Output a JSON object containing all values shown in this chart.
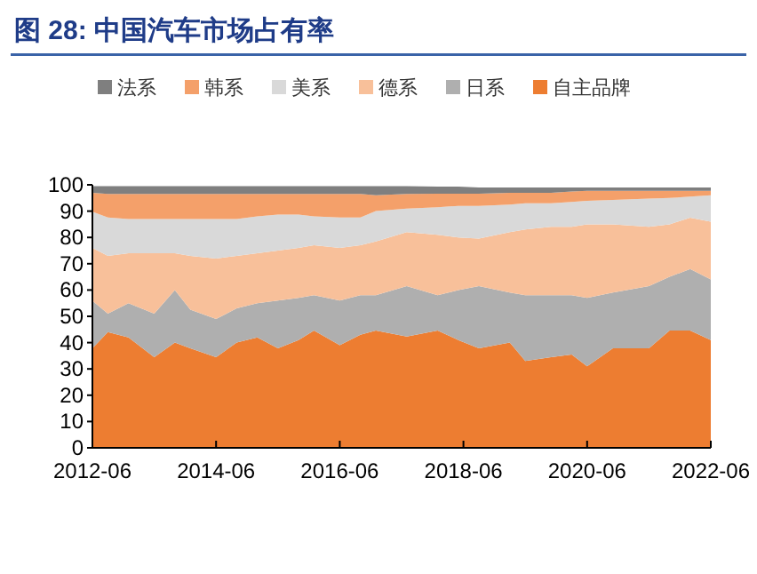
{
  "chart_data": {
    "type": "area",
    "stacked": true,
    "title": "图 28: 中国汽车市场占有率",
    "x": [
      "2012-06",
      "2012-09",
      "2013-01",
      "2013-06",
      "2013-10",
      "2014-01",
      "2014-06",
      "2014-10",
      "2015-02",
      "2015-06",
      "2015-10",
      "2016-01",
      "2016-06",
      "2016-10",
      "2017-01",
      "2017-07",
      "2018-01",
      "2018-05",
      "2018-09",
      "2019-03",
      "2019-06",
      "2019-11",
      "2020-03",
      "2020-06",
      "2020-11",
      "2021-06",
      "2021-10",
      "2022-02",
      "2022-06"
    ],
    "series": [
      {
        "name": "自主品牌",
        "color": "#ed7d31",
        "values": [
          37.8,
          44,
          42,
          34.5,
          40,
          37.8,
          34.5,
          40,
          42,
          37.8,
          41,
          44.6,
          39,
          43,
          44.6,
          42.3,
          44.6,
          41,
          37.8,
          40,
          33,
          34.5,
          35.5,
          31,
          37.8,
          37.8,
          44.6,
          44.6,
          41
        ]
      },
      {
        "name": "日系",
        "color": "#afafaf",
        "values": [
          18.1,
          7,
          13,
          16.5,
          20,
          14.7,
          14.5,
          13,
          13,
          18.2,
          16,
          13.4,
          17,
          15,
          13.4,
          19.2,
          13.4,
          19,
          23.7,
          19,
          25,
          23.5,
          22.5,
          26,
          21.2,
          23.7,
          20.4,
          23.4,
          23
        ]
      },
      {
        "name": "德系",
        "color": "#f8c09a",
        "values": [
          20.1,
          22,
          19,
          23,
          14,
          20.5,
          23,
          20,
          19,
          19,
          19,
          19,
          20,
          19,
          20.5,
          20.5,
          23,
          20,
          18.1,
          23,
          25,
          26,
          26,
          28,
          26,
          22.5,
          20,
          19.5,
          22
        ]
      },
      {
        "name": "美系",
        "color": "#d9d9d9",
        "values": [
          13.8,
          14.6,
          13,
          13,
          13,
          14,
          15,
          14,
          14,
          13.7,
          12.7,
          11,
          11.6,
          10.6,
          11.5,
          9,
          10.5,
          12,
          12.4,
          10.5,
          10,
          9,
          9.5,
          8.9,
          9.3,
          10.8,
          10,
          8,
          10
        ]
      },
      {
        "name": "韩系",
        "color": "#f4a06a",
        "values": [
          7.2,
          8.9,
          9.5,
          9.5,
          9.5,
          9.5,
          9.5,
          9.5,
          8.5,
          7.8,
          7.8,
          8.5,
          8.9,
          8.9,
          6,
          5.5,
          5.1,
          4.6,
          4.6,
          4.5,
          4,
          4,
          4,
          3.8,
          3.4,
          2.9,
          2.7,
          2.2,
          1.7
        ]
      },
      {
        "name": "法系",
        "color": "#7f7f7f",
        "values": [
          2.5,
          3,
          3,
          3,
          3,
          3,
          3,
          3,
          3,
          3,
          3,
          3,
          3,
          3,
          3.5,
          3,
          2.7,
          2.7,
          2.4,
          2,
          2,
          2,
          1.5,
          1.3,
          1.3,
          1.3,
          1.3,
          1.3,
          1.3
        ]
      }
    ],
    "xlim": [
      "2012-06",
      "2022-06"
    ],
    "xticks": [
      "2012-06",
      "2014-06",
      "2016-06",
      "2018-06",
      "2020-06",
      "2022-06"
    ],
    "ylim": [
      0,
      100
    ],
    "yticks": [
      0,
      10,
      20,
      30,
      40,
      50,
      60,
      70,
      80,
      90,
      100
    ],
    "legend": "top"
  }
}
